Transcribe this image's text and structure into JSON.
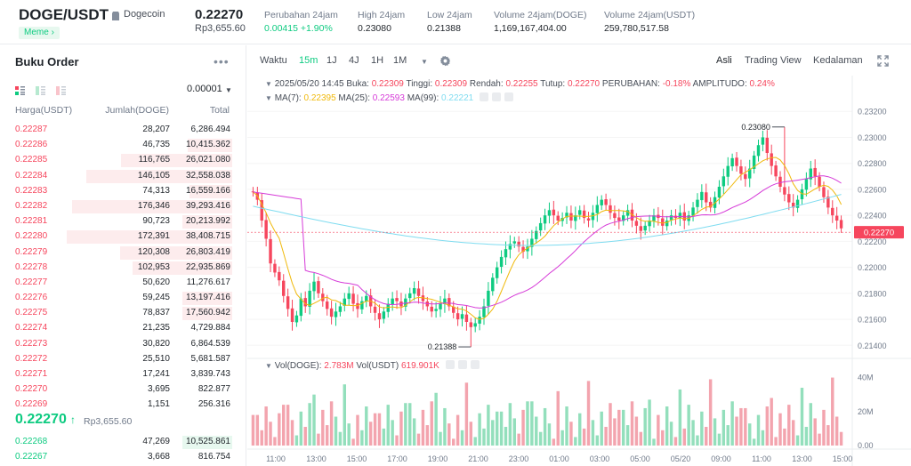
{
  "header": {
    "pair": "DOGE/USDT",
    "coin": "Dogecoin",
    "tag": "Meme",
    "last_price": "0.22270",
    "last_price_idr": "Rp3,655.60",
    "stats": [
      {
        "label": "Perubahan 24jam",
        "value": "0.00415 +1.90%",
        "color": "green"
      },
      {
        "label": "High 24jam",
        "value": "0.23080"
      },
      {
        "label": "Low 24jam",
        "value": "0.21388"
      },
      {
        "label": "Volume 24jam(DOGE)",
        "value": "1,169,167,404.00"
      },
      {
        "label": "Volume 24jam(USDT)",
        "value": "259,780,517.58"
      }
    ]
  },
  "orderbook": {
    "title": "Buku Order",
    "more": "•••",
    "precision": "0.00001",
    "headers": {
      "price": "Harga(USDT)",
      "amount": "Jumlah(DOGE)",
      "total": "Total"
    },
    "asks": [
      {
        "price": "0.22287",
        "amount": "28,207",
        "total": "6,286.494",
        "depth": 0.0
      },
      {
        "price": "0.22286",
        "amount": "46,735",
        "total": "10,415.362",
        "depth": 0.27
      },
      {
        "price": "0.22285",
        "amount": "116,765",
        "total": "26,021.080",
        "depth": 0.67
      },
      {
        "price": "0.22284",
        "amount": "146,105",
        "total": "32,558.038",
        "depth": 0.88
      },
      {
        "price": "0.22283",
        "amount": "74,313",
        "total": "16,559.166",
        "depth": 0.26
      },
      {
        "price": "0.22282",
        "amount": "176,346",
        "total": "39,293.416",
        "depth": 0.97
      },
      {
        "price": "0.22281",
        "amount": "90,723",
        "total": "20,213.992",
        "depth": 0.3
      },
      {
        "price": "0.22280",
        "amount": "172,391",
        "total": "38,408.715",
        "depth": 1.0
      },
      {
        "price": "0.22279",
        "amount": "120,308",
        "total": "26,803.419",
        "depth": 0.68
      },
      {
        "price": "0.22278",
        "amount": "102,953",
        "total": "22,935.869",
        "depth": 0.6
      },
      {
        "price": "0.22277",
        "amount": "50,620",
        "total": "11,276.617",
        "depth": 0.0
      },
      {
        "price": "0.22276",
        "amount": "59,245",
        "total": "13,197.416",
        "depth": 0.3
      },
      {
        "price": "0.22275",
        "amount": "78,837",
        "total": "17,560.942",
        "depth": 0.3
      },
      {
        "price": "0.22274",
        "amount": "21,235",
        "total": "4,729.884",
        "depth": 0.0
      },
      {
        "price": "0.22273",
        "amount": "30,820",
        "total": "6,864.539",
        "depth": 0.0
      },
      {
        "price": "0.22272",
        "amount": "25,510",
        "total": "5,681.587",
        "depth": 0.0
      },
      {
        "price": "0.22271",
        "amount": "17,241",
        "total": "3,839.743",
        "depth": 0.0
      },
      {
        "price": "0.22270",
        "amount": "3,695",
        "total": "822.877",
        "depth": 0.0
      },
      {
        "price": "0.22269",
        "amount": "1,151",
        "total": "256.316",
        "depth": 0.0
      }
    ],
    "mid_price": "0.22270",
    "mid_arrow": "↑",
    "mid_idr": "Rp3,655.60",
    "bids": [
      {
        "price": "0.22268",
        "amount": "47,269",
        "total": "10,525.861",
        "depth": 0.3
      },
      {
        "price": "0.22267",
        "amount": "3,668",
        "total": "816.754",
        "depth": 0.0
      }
    ]
  },
  "toolbar": {
    "time_label": "Waktu",
    "intervals": [
      "15m",
      "1J",
      "4J",
      "1H",
      "1M"
    ],
    "active_interval": "15m",
    "views": [
      "Asli",
      "Trading View",
      "Kedalaman"
    ],
    "active_view": "Asli"
  },
  "legend": {
    "date": "2025/05/20 14:45",
    "open_label": "Buka:",
    "open": "0.22309",
    "high_label": "Tinggi:",
    "high": "0.22309",
    "low_label": "Rendah:",
    "low": "0.22255",
    "close_label": "Tutup:",
    "close": "0.22270",
    "change_label": "PERUBAHAN:",
    "change": "-0.18%",
    "amp_label": "AMPLITUDO:",
    "amp": "0.24%",
    "ma7_label": "MA(7):",
    "ma7": "0.22395",
    "ma25_label": "MA(25):",
    "ma25": "0.22593",
    "ma99_label": "MA(99):",
    "ma99": "0.22221",
    "vol_label": "Vol(DOGE):",
    "vol": "2.783M",
    "volu_label": "Vol(USDT)",
    "volu": "619.901K"
  },
  "colors": {
    "up": "#0ecb81",
    "down": "#f6465d",
    "ma7": "#f0b90b",
    "ma25": "#d63bd8",
    "ma99": "#7fdcf0"
  },
  "chart_data": {
    "type": "candlestick",
    "price_axis": {
      "ticks": [
        "0.23200",
        "0.23000",
        "0.22800",
        "0.22600",
        "0.22400",
        "0.22200",
        "0.22000",
        "0.21800",
        "0.21600",
        "0.21400"
      ],
      "range": [
        0.2132,
        0.2327
      ],
      "current": "0.22270"
    },
    "volume_axis": {
      "ticks": [
        "40M",
        "20M",
        "0.00"
      ],
      "max": 45
    },
    "time_ticks": [
      "11:00",
      "13:00",
      "15:00",
      "17:00",
      "19:00",
      "21:00",
      "23:00",
      "01:00",
      "03:00",
      "05:00",
      "05/20",
      "09:00",
      "11:00",
      "13:00",
      "15:00"
    ],
    "high_annotation": {
      "value": "0.23080",
      "index": 122
    },
    "low_annotation": {
      "value": "0.21388",
      "index": 50
    },
    "candles": []
  }
}
